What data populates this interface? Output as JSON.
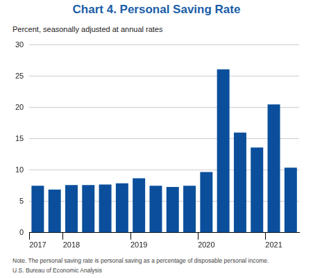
{
  "chart_data": {
    "type": "bar",
    "title": "Chart 4. Personal Saving Rate",
    "subtitle": "Percent, seasonally adjusted at annual rates",
    "categories": [
      "2017",
      null,
      "2018",
      null,
      null,
      null,
      "2019",
      null,
      null,
      null,
      "2020",
      null,
      null,
      null,
      "2021",
      null
    ],
    "values": [
      7.5,
      6.9,
      7.6,
      7.6,
      7.7,
      7.9,
      8.7,
      7.5,
      7.3,
      7.5,
      9.7,
      26.1,
      16.0,
      13.6,
      20.5,
      10.4
    ],
    "color": "#0b4f9c",
    "ylim": [
      0,
      30
    ],
    "yticks": [
      0,
      5,
      10,
      15,
      20,
      25,
      30
    ],
    "grid": true,
    "note": "Note. The personal saving rate is personal saving as a percentage of disposable personal income.",
    "source": "U.S. Bureau of Economic Analysis"
  }
}
